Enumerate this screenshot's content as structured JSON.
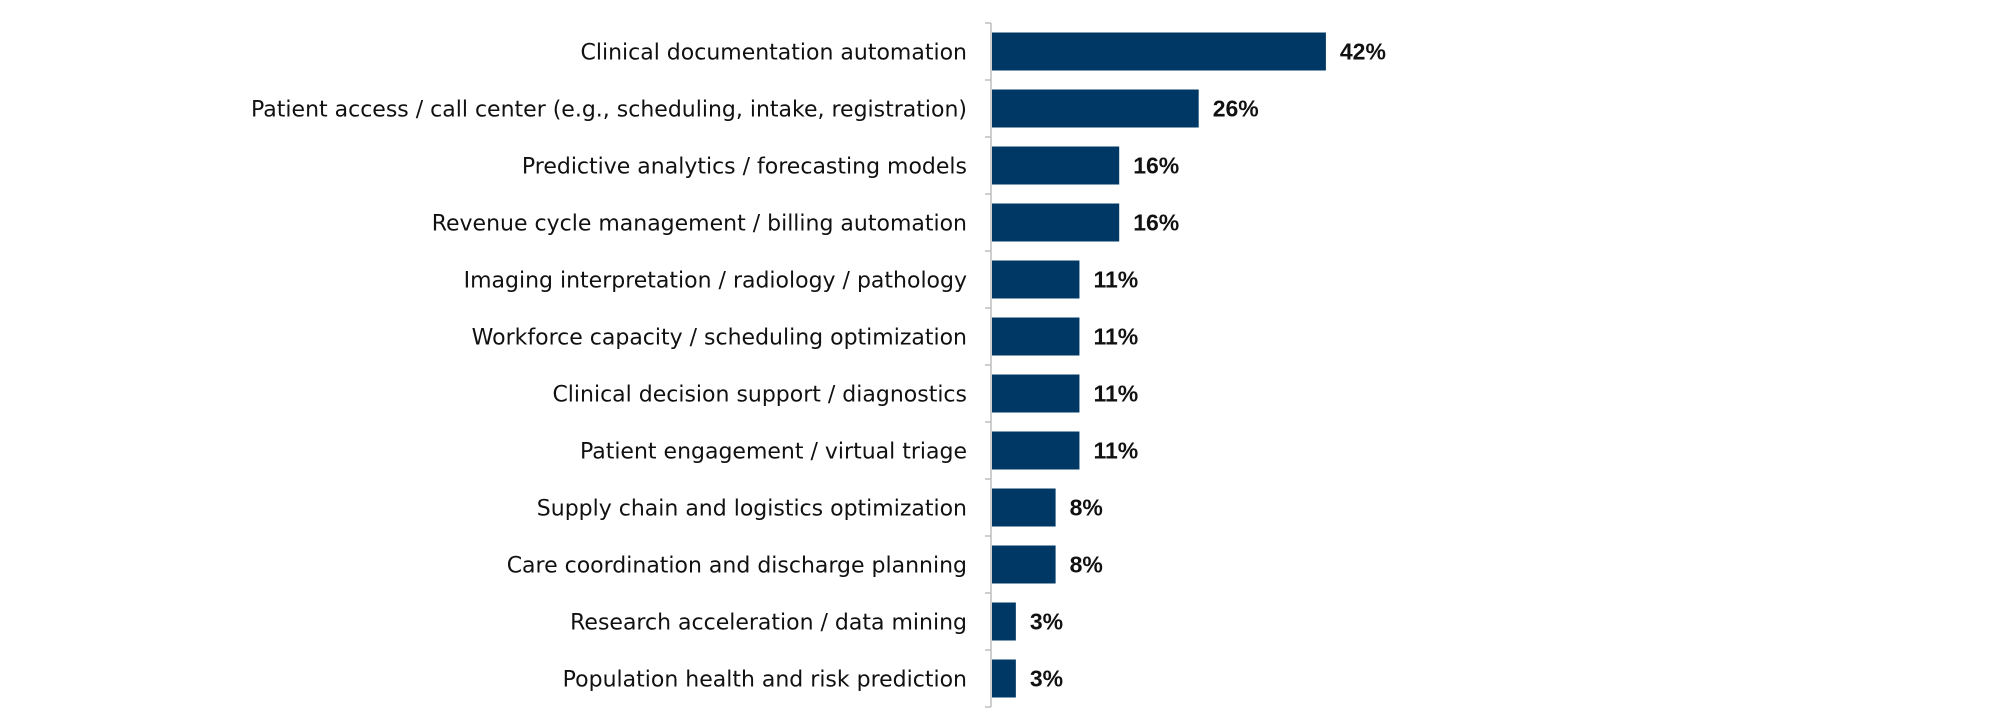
{
  "chart_data": {
    "type": "bar",
    "orientation": "horizontal",
    "categories": [
      "Clinical documentation automation",
      "Patient access / call center (e.g., scheduling, intake, registration)",
      "Predictive analytics / forecasting models",
      "Revenue cycle management / billing automation",
      "Imaging interpretation / radiology / pathology",
      "Workforce capacity / scheduling optimization",
      "Clinical decision support / diagnostics",
      "Patient engagement / virtual triage",
      "Supply chain and logistics optimization",
      "Care coordination and discharge planning",
      "Research acceleration / data mining",
      "Population health and risk prediction"
    ],
    "values": [
      42,
      26,
      16,
      16,
      11,
      11,
      11,
      11,
      8,
      8,
      3,
      3
    ],
    "value_labels": [
      "42%",
      "26%",
      "16%",
      "16%",
      "11%",
      "11%",
      "11%",
      "11%",
      "8%",
      "8%",
      "3%",
      "3%"
    ],
    "title": "",
    "xlabel": "",
    "ylabel": "",
    "xlim": [
      0,
      100
    ],
    "grid": false,
    "legend": "none",
    "bar_color": "#003865"
  }
}
